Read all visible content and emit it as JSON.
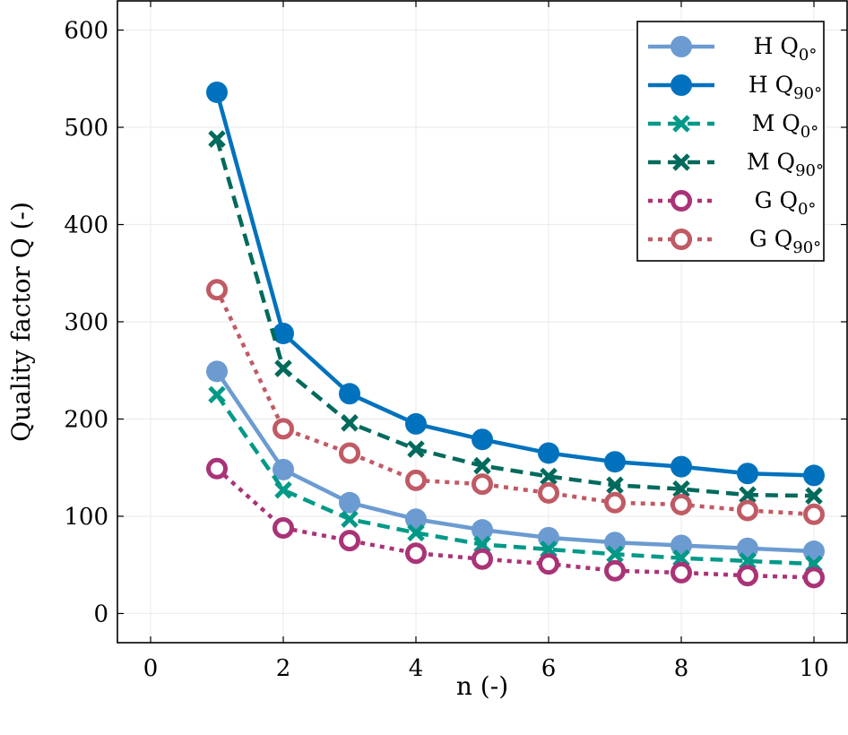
{
  "chart_data": {
    "type": "line",
    "xlabel": "n (-)",
    "ylabel": "Quality factor Q (-)",
    "xlim": [
      -0.5,
      10.5
    ],
    "ylim": [
      -30,
      630
    ],
    "xticks": [
      0,
      2,
      4,
      6,
      8,
      10
    ],
    "yticks": [
      0,
      100,
      200,
      300,
      400,
      500,
      600
    ],
    "grid": true,
    "legend_position": "top-right",
    "x": [
      1,
      2,
      3,
      4,
      5,
      6,
      7,
      8,
      9,
      10
    ],
    "series": [
      {
        "name": "H Q0°",
        "label_main": "H Q",
        "label_sub": "0°",
        "color": "#6b9bd1",
        "dash": "solid",
        "marker": "circle-filled",
        "values": [
          249,
          148,
          114,
          97,
          86,
          78,
          73,
          70,
          67,
          64
        ]
      },
      {
        "name": "H Q90°",
        "label_main": "H Q",
        "label_sub": "90°",
        "color": "#0072bd",
        "dash": "solid",
        "marker": "circle-filled",
        "values": [
          536,
          288,
          226,
          195,
          179,
          165,
          156,
          151,
          144,
          142
        ]
      },
      {
        "name": "M Q0°",
        "label_main": "M Q",
        "label_sub": "0°",
        "color": "#009988",
        "dash": "dashed",
        "marker": "x",
        "values": [
          225,
          127,
          97,
          83,
          71,
          66,
          61,
          57,
          54,
          51
        ]
      },
      {
        "name": "M Q90°",
        "label_main": "M Q",
        "label_sub": "90°",
        "color": "#006a5c",
        "dash": "dashed",
        "marker": "x",
        "values": [
          488,
          252,
          196,
          169,
          152,
          141,
          132,
          128,
          122,
          121
        ]
      },
      {
        "name": "G Q0°",
        "label_main": "G Q",
        "label_sub": "0°",
        "color": "#aa3377",
        "dash": "dotted",
        "marker": "circle-open",
        "values": [
          149,
          88,
          75,
          62,
          56,
          51,
          44,
          42,
          39,
          37
        ]
      },
      {
        "name": "G Q90°",
        "label_main": "G Q",
        "label_sub": "90°",
        "color": "#c05a64",
        "dash": "dotted",
        "marker": "circle-open",
        "values": [
          333,
          190,
          165,
          137,
          133,
          124,
          114,
          112,
          106,
          102
        ]
      }
    ]
  }
}
